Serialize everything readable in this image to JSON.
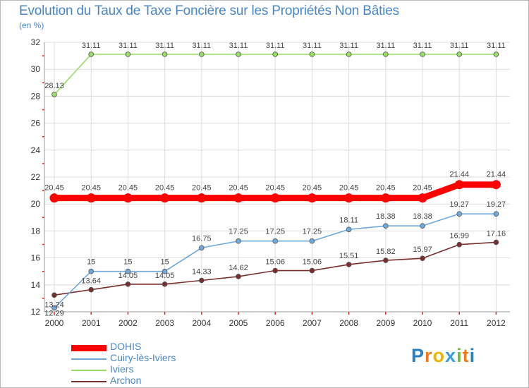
{
  "chart_data": {
    "type": "line",
    "title": "Evolution du Taux de Taxe Foncière sur les Propriétés Non Bâties",
    "ylabel": "(en %)",
    "xlabel": "",
    "ylim": [
      12,
      32
    ],
    "yticks": [
      "12",
      "14",
      "16",
      "18",
      "20",
      "22",
      "24",
      "26",
      "28",
      "30",
      "32"
    ],
    "categories": [
      "2000",
      "2001",
      "2002",
      "2003",
      "2004",
      "2005",
      "2006",
      "2007",
      "2008",
      "2009",
      "2010",
      "2011",
      "2012"
    ],
    "grid": true,
    "legend_position": "bottom-left",
    "series": [
      {
        "name": "DOHIS",
        "color": "#ff0000",
        "values": [
          20.45,
          20.45,
          20.45,
          20.45,
          20.45,
          20.45,
          20.45,
          20.45,
          20.45,
          20.45,
          20.45,
          21.44,
          21.44
        ],
        "labels": [
          "20.45",
          "20.45",
          "20.45",
          "20.45",
          "20.45",
          "20.45",
          "20.45",
          "20.45",
          "20.45",
          "20.45",
          "20.45",
          "21.44",
          "21.44"
        ]
      },
      {
        "name": "Cuiry-lès-Iviers",
        "color": "#6fa8dc",
        "values": [
          12.29,
          15,
          15,
          15,
          16.75,
          17.25,
          17.25,
          17.25,
          18.11,
          18.38,
          18.38,
          19.27,
          19.27
        ],
        "labels": [
          "12.29",
          "15",
          "15",
          "15",
          "16.75",
          "17.25",
          "17.25",
          "17.25",
          "18.11",
          "18.38",
          "18.38",
          "19.27",
          "19.27"
        ]
      },
      {
        "name": "Iviers",
        "color": "#99dd66",
        "values": [
          28.13,
          31.11,
          31.11,
          31.11,
          31.11,
          31.11,
          31.11,
          31.11,
          31.11,
          31.11,
          31.11,
          31.11,
          31.11
        ],
        "labels": [
          "28.13",
          "31.11",
          "31.11",
          "31.11",
          "31.11",
          "31.11",
          "31.11",
          "31.11",
          "31.11",
          "31.11",
          "31.11",
          "31.11",
          "31.11"
        ]
      },
      {
        "name": "Archon",
        "color": "#7a2f2f",
        "values": [
          13.24,
          13.64,
          14.05,
          14.05,
          14.33,
          14.62,
          15.06,
          15.06,
          15.51,
          15.82,
          15.97,
          16.99,
          17.16
        ],
        "labels": [
          "13.24",
          "13.64",
          "14.05",
          "14.05",
          "14.33",
          "14.62",
          "15.06",
          "15.06",
          "15.51",
          "15.82",
          "15.97",
          "16.99",
          "17.16"
        ]
      }
    ]
  },
  "brand": {
    "letters": [
      "P",
      "r",
      "o",
      "x",
      "i",
      "t",
      "i"
    ],
    "colors": [
      "#2a7fc0",
      "#f07d1a",
      "#f0b400",
      "#3aa0d8",
      "#6cbf3a",
      "#f07d1a",
      "#2a7fc0"
    ]
  }
}
